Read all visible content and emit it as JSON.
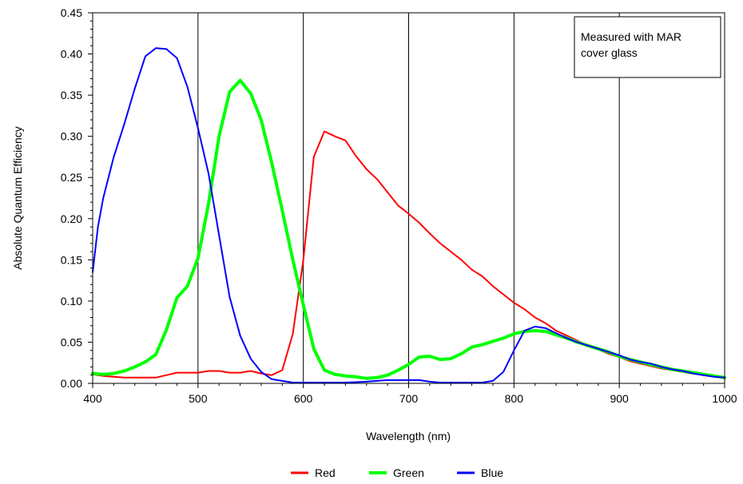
{
  "chart_data": {
    "type": "line",
    "title": "",
    "xlabel": "Wavelength (nm)",
    "ylabel": "Absolute Quantum Efficiency",
    "xlim": [
      400,
      1000
    ],
    "ylim": [
      0,
      0.45
    ],
    "x_ticks": [
      "400",
      "500",
      "600",
      "700",
      "800",
      "900",
      "1000"
    ],
    "y_ticks": [
      "0.00",
      "0.05",
      "0.10",
      "0.15",
      "0.20",
      "0.25",
      "0.30",
      "0.35",
      "0.40",
      "0.45"
    ],
    "grid": "vertical major lines",
    "legend_position": "bottom-center",
    "annotation": [
      "Measured with MAR",
      "cover glass"
    ],
    "series": [
      {
        "name": "Red",
        "color": "#ff0000",
        "points": [
          [
            400,
            0.011
          ],
          [
            410,
            0.009
          ],
          [
            420,
            0.008
          ],
          [
            430,
            0.007
          ],
          [
            440,
            0.007
          ],
          [
            450,
            0.007
          ],
          [
            460,
            0.007
          ],
          [
            470,
            0.01
          ],
          [
            480,
            0.013
          ],
          [
            490,
            0.013
          ],
          [
            500,
            0.013
          ],
          [
            510,
            0.015
          ],
          [
            520,
            0.015
          ],
          [
            530,
            0.013
          ],
          [
            540,
            0.013
          ],
          [
            550,
            0.015
          ],
          [
            560,
            0.012
          ],
          [
            570,
            0.01
          ],
          [
            580,
            0.016
          ],
          [
            590,
            0.06
          ],
          [
            600,
            0.15
          ],
          [
            610,
            0.275
          ],
          [
            620,
            0.306
          ],
          [
            630,
            0.3
          ],
          [
            640,
            0.295
          ],
          [
            650,
            0.276
          ],
          [
            660,
            0.26
          ],
          [
            670,
            0.248
          ],
          [
            680,
            0.232
          ],
          [
            690,
            0.216
          ],
          [
            700,
            0.206
          ],
          [
            710,
            0.195
          ],
          [
            720,
            0.182
          ],
          [
            730,
            0.17
          ],
          [
            740,
            0.16
          ],
          [
            750,
            0.15
          ],
          [
            760,
            0.138
          ],
          [
            770,
            0.13
          ],
          [
            780,
            0.118
          ],
          [
            790,
            0.108
          ],
          [
            800,
            0.098
          ],
          [
            810,
            0.09
          ],
          [
            820,
            0.08
          ],
          [
            830,
            0.073
          ],
          [
            840,
            0.064
          ],
          [
            850,
            0.058
          ],
          [
            860,
            0.052
          ],
          [
            870,
            0.046
          ],
          [
            880,
            0.041
          ],
          [
            890,
            0.036
          ],
          [
            900,
            0.032
          ],
          [
            910,
            0.027
          ],
          [
            920,
            0.024
          ],
          [
            930,
            0.021
          ],
          [
            940,
            0.018
          ],
          [
            950,
            0.016
          ],
          [
            960,
            0.014
          ],
          [
            970,
            0.012
          ],
          [
            980,
            0.01
          ],
          [
            990,
            0.009
          ],
          [
            1000,
            0.007
          ]
        ]
      },
      {
        "name": "Green",
        "color": "#00ff00",
        "points": [
          [
            400,
            0.012
          ],
          [
            410,
            0.011
          ],
          [
            420,
            0.012
          ],
          [
            430,
            0.015
          ],
          [
            440,
            0.02
          ],
          [
            450,
            0.026
          ],
          [
            460,
            0.035
          ],
          [
            470,
            0.065
          ],
          [
            480,
            0.104
          ],
          [
            490,
            0.118
          ],
          [
            500,
            0.152
          ],
          [
            510,
            0.218
          ],
          [
            520,
            0.3
          ],
          [
            530,
            0.354
          ],
          [
            540,
            0.368
          ],
          [
            550,
            0.352
          ],
          [
            560,
            0.32
          ],
          [
            570,
            0.268
          ],
          [
            580,
            0.21
          ],
          [
            590,
            0.15
          ],
          [
            600,
            0.095
          ],
          [
            610,
            0.042
          ],
          [
            620,
            0.016
          ],
          [
            630,
            0.011
          ],
          [
            640,
            0.009
          ],
          [
            650,
            0.008
          ],
          [
            660,
            0.006
          ],
          [
            670,
            0.007
          ],
          [
            680,
            0.01
          ],
          [
            690,
            0.016
          ],
          [
            700,
            0.023
          ],
          [
            710,
            0.032
          ],
          [
            720,
            0.033
          ],
          [
            730,
            0.029
          ],
          [
            740,
            0.03
          ],
          [
            750,
            0.036
          ],
          [
            760,
            0.044
          ],
          [
            770,
            0.047
          ],
          [
            780,
            0.051
          ],
          [
            790,
            0.055
          ],
          [
            800,
            0.06
          ],
          [
            810,
            0.063
          ],
          [
            820,
            0.064
          ],
          [
            830,
            0.063
          ],
          [
            840,
            0.059
          ],
          [
            850,
            0.055
          ],
          [
            860,
            0.05
          ],
          [
            870,
            0.046
          ],
          [
            880,
            0.042
          ],
          [
            890,
            0.038
          ],
          [
            900,
            0.033
          ],
          [
            910,
            0.029
          ],
          [
            920,
            0.026
          ],
          [
            930,
            0.023
          ],
          [
            940,
            0.02
          ],
          [
            950,
            0.017
          ],
          [
            960,
            0.015
          ],
          [
            970,
            0.013
          ],
          [
            980,
            0.011
          ],
          [
            990,
            0.009
          ],
          [
            1000,
            0.007
          ]
        ]
      },
      {
        "name": "Blue",
        "color": "#0000ff",
        "points": [
          [
            400,
            0.135
          ],
          [
            405,
            0.19
          ],
          [
            410,
            0.225
          ],
          [
            420,
            0.275
          ],
          [
            430,
            0.315
          ],
          [
            440,
            0.358
          ],
          [
            450,
            0.397
          ],
          [
            460,
            0.407
          ],
          [
            470,
            0.406
          ],
          [
            480,
            0.395
          ],
          [
            490,
            0.36
          ],
          [
            500,
            0.31
          ],
          [
            510,
            0.255
          ],
          [
            520,
            0.18
          ],
          [
            530,
            0.105
          ],
          [
            540,
            0.058
          ],
          [
            550,
            0.03
          ],
          [
            560,
            0.014
          ],
          [
            570,
            0.005
          ],
          [
            580,
            0.003
          ],
          [
            590,
            0.001
          ],
          [
            600,
            0.001
          ],
          [
            620,
            0.001
          ],
          [
            640,
            0.001
          ],
          [
            660,
            0.002
          ],
          [
            680,
            0.004
          ],
          [
            700,
            0.004
          ],
          [
            710,
            0.004
          ],
          [
            720,
            0.002
          ],
          [
            730,
            0.001
          ],
          [
            760,
            0.001
          ],
          [
            770,
            0.001
          ],
          [
            780,
            0.003
          ],
          [
            790,
            0.014
          ],
          [
            800,
            0.04
          ],
          [
            810,
            0.064
          ],
          [
            820,
            0.069
          ],
          [
            830,
            0.067
          ],
          [
            840,
            0.061
          ],
          [
            850,
            0.055
          ],
          [
            860,
            0.05
          ],
          [
            870,
            0.046
          ],
          [
            880,
            0.042
          ],
          [
            890,
            0.038
          ],
          [
            900,
            0.034
          ],
          [
            910,
            0.029
          ],
          [
            920,
            0.026
          ],
          [
            930,
            0.024
          ],
          [
            940,
            0.02
          ],
          [
            950,
            0.017
          ],
          [
            960,
            0.015
          ],
          [
            970,
            0.012
          ],
          [
            980,
            0.01
          ],
          [
            990,
            0.008
          ],
          [
            1000,
            0.007
          ]
        ]
      }
    ]
  }
}
